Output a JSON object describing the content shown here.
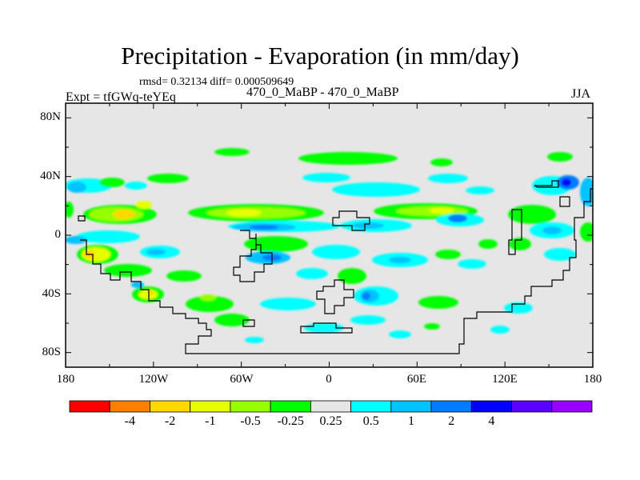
{
  "title": "Precipitation - Evaporation (in mm/day)",
  "stats": "rmsd= 0.32134 diff= 0.000509649",
  "experiment": "Expt = tfGWq-teYEq",
  "runs": "470_0_MaBP - 470_0_MaBP",
  "season": "JJA",
  "lat_ticks": [
    "80N",
    "40N",
    "0",
    "40S",
    "80S"
  ],
  "lon_ticks": [
    "180",
    "120W",
    "60W",
    "0",
    "60E",
    "120E",
    "180"
  ],
  "colorbar": {
    "colors": [
      "#ff0000",
      "#ff8000",
      "#ffd800",
      "#e6ff00",
      "#96ff00",
      "#00ff00",
      "#e6e6e6",
      "#00ffff",
      "#00c3ff",
      "#007dff",
      "#0000ff",
      "#5a00ff",
      "#9a00ff"
    ],
    "labels": [
      "-4",
      "-2",
      "-1",
      "-0.5",
      "-0.25",
      "0.25",
      "0.5",
      "1",
      "2",
      "4"
    ]
  },
  "colors": {
    "background_field": "#e6e6e6",
    "land_outline": "#000000"
  }
}
